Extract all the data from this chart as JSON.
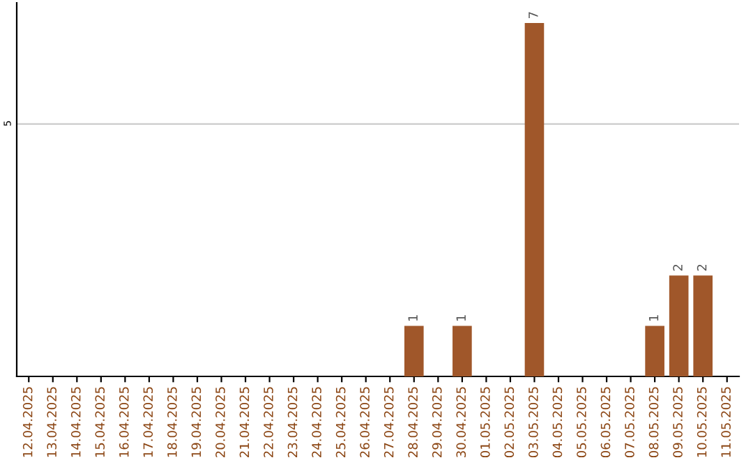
{
  "chart_data": {
    "type": "bar",
    "categories": [
      "12.04.2025",
      "13.04.2025",
      "14.04.2025",
      "15.04.2025",
      "16.04.2025",
      "17.04.2025",
      "18.04.2025",
      "19.04.2025",
      "20.04.2025",
      "21.04.2025",
      "22.04.2025",
      "23.04.2025",
      "24.04.2025",
      "25.04.2025",
      "26.04.2025",
      "27.04.2025",
      "28.04.2025",
      "29.04.2025",
      "30.04.2025",
      "01.05.2025",
      "02.05.2025",
      "03.05.2025",
      "04.05.2025",
      "05.05.2025",
      "06.05.2025",
      "07.05.2025",
      "08.05.2025",
      "09.05.2025",
      "10.05.2025",
      "11.05.2025"
    ],
    "values": [
      null,
      null,
      null,
      null,
      null,
      null,
      null,
      null,
      null,
      null,
      null,
      null,
      null,
      null,
      null,
      null,
      1,
      null,
      1,
      null,
      null,
      7,
      null,
      null,
      null,
      null,
      1,
      2,
      2,
      null
    ],
    "value_labels": [
      null,
      null,
      null,
      null,
      null,
      null,
      null,
      null,
      null,
      null,
      null,
      null,
      null,
      null,
      null,
      null,
      "1",
      null,
      "1",
      null,
      null,
      "7",
      null,
      null,
      null,
      null,
      "1",
      "2",
      "2",
      null
    ],
    "color": "#a0572a",
    "ylim": [
      0,
      7.4
    ],
    "yticks": [
      5
    ],
    "grid": "y"
  }
}
